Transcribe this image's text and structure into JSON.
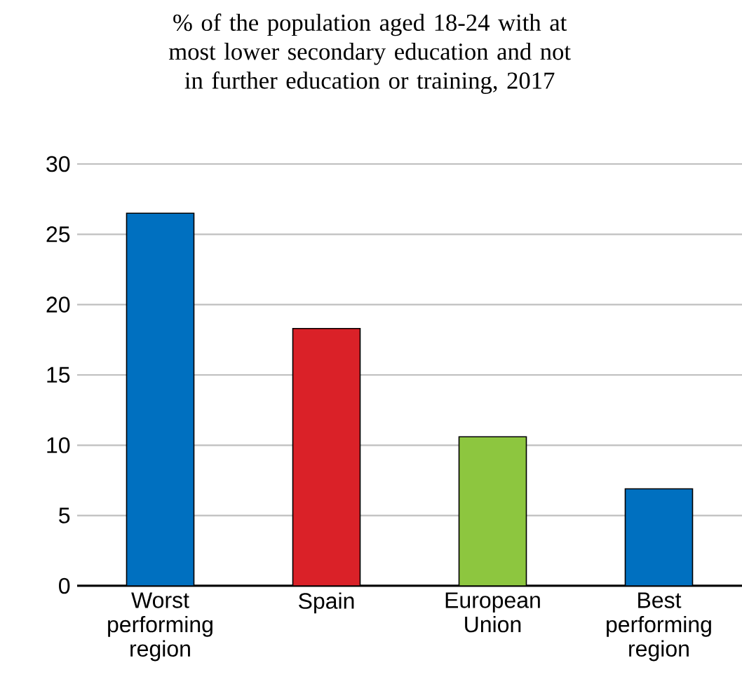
{
  "chart_data": {
    "type": "bar",
    "title": "% of the population aged 18-24 with at most lower secondary education and not in further education or training, 2017",
    "categories": [
      "Worst performing region",
      "Spain",
      "European Union",
      "Best performing region"
    ],
    "values": [
      26.5,
      18.3,
      10.6,
      6.9
    ],
    "colors": [
      "#0070c0",
      "#da2128",
      "#8dc63f",
      "#0070c0"
    ],
    "ylim": [
      0,
      30
    ],
    "yticks": [
      0,
      5,
      10,
      15,
      20,
      25,
      30
    ],
    "grid": "y"
  }
}
